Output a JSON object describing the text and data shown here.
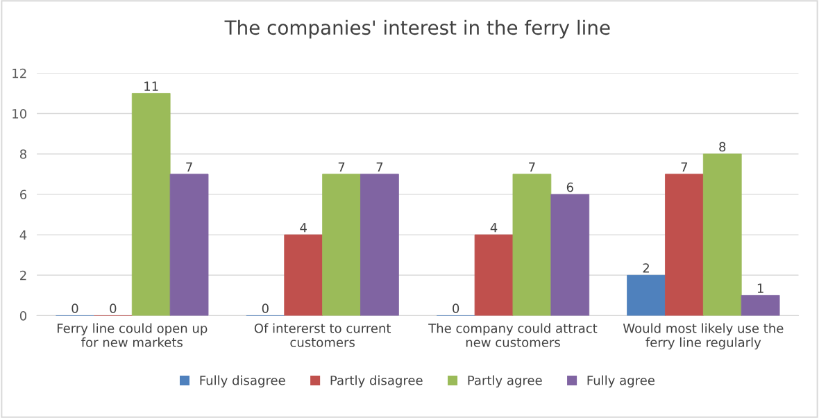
{
  "chart_data": {
    "type": "bar",
    "title": "The companies' interest in the ferry line",
    "categories": [
      "Ferry line could open up\nfor new markets",
      "Of intererst to current\ncustomers",
      "The company could attract\nnew customers",
      "Would most likely use the\nferry line regularly"
    ],
    "series": [
      {
        "name": "Fully disagree",
        "color": "#4f81bd",
        "values": [
          0,
          0,
          0,
          2
        ]
      },
      {
        "name": "Partly disagree",
        "color": "#c0504d",
        "values": [
          0,
          4,
          4,
          7
        ]
      },
      {
        "name": "Partly agree",
        "color": "#9bbb59",
        "values": [
          11,
          7,
          7,
          8
        ]
      },
      {
        "name": "Fully agree",
        "color": "#8064a2",
        "values": [
          7,
          7,
          6,
          1
        ]
      }
    ],
    "ylim": [
      0,
      12
    ],
    "yticks": [
      0,
      2,
      4,
      6,
      8,
      10,
      12
    ],
    "grid": "y",
    "legend": "bottom",
    "data_labels": true
  }
}
